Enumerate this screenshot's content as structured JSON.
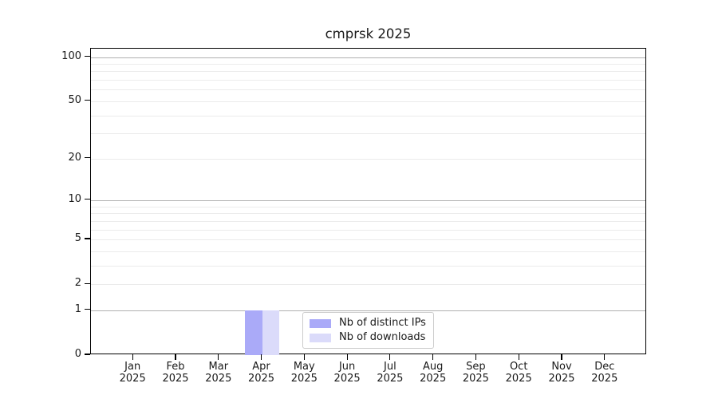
{
  "title": "cmprsk 2025",
  "chart_data": {
    "type": "bar",
    "title": "cmprsk 2025",
    "xlabel": "",
    "ylabel": "",
    "categories": [
      "Jan 2025",
      "Feb 2025",
      "Mar 2025",
      "Apr 2025",
      "May 2025",
      "Jun 2025",
      "Jul 2025",
      "Aug 2025",
      "Sep 2025",
      "Oct 2025",
      "Nov 2025",
      "Dec 2025"
    ],
    "series": [
      {
        "name": "Nb of distinct IPs",
        "color": "#aaaaf8",
        "values": [
          0,
          0,
          0,
          1,
          0,
          0,
          0,
          0,
          0,
          0,
          0,
          0
        ]
      },
      {
        "name": "Nb of downloads",
        "color": "#dbdbfa",
        "values": [
          0,
          0,
          0,
          1,
          0,
          0,
          0,
          0,
          0,
          0,
          0,
          0
        ]
      }
    ],
    "y_scale": "log1p",
    "ylim": [
      0,
      114
    ],
    "y_tick_values": [
      0,
      1,
      2,
      5,
      10,
      20,
      50,
      100
    ],
    "y_major_gridlines": [
      1,
      10,
      100
    ],
    "y_minor_gridlines": [
      2,
      3,
      4,
      5,
      6,
      7,
      8,
      9,
      20,
      30,
      40,
      50,
      60,
      70,
      80,
      90
    ],
    "grid": "on",
    "legend_position": "lower center"
  },
  "colors": {
    "background": "#ffffff",
    "spine": "#000000",
    "major_grid": "#b0b0b0",
    "minor_grid": "#ebebeb",
    "text": "#1a1a1a",
    "legend_border": "#cccccc",
    "bar_distinct_ips": "#aaaaf8",
    "bar_downloads": "#dbdbfa"
  }
}
